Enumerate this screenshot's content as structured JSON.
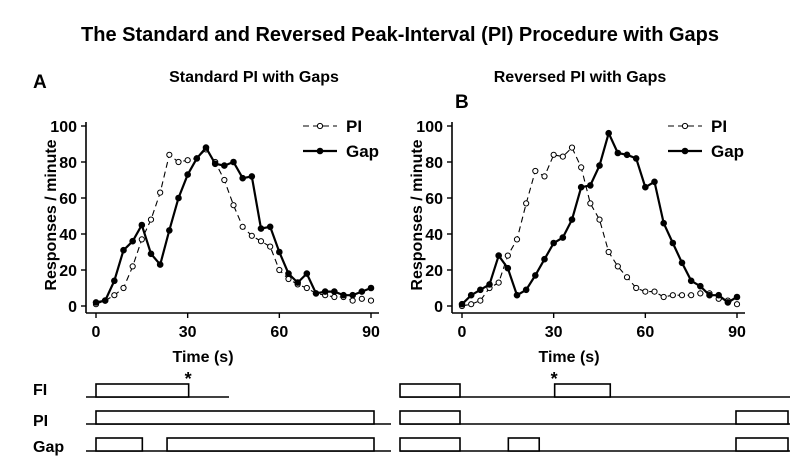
{
  "title": "The Standard and Reversed Peak-Interval (PI) Procedure with Gaps",
  "chart_data": [
    {
      "type": "line",
      "panel_label": "A",
      "title": "Standard PI with Gaps",
      "xlabel": "Time (s)",
      "ylabel": "Responses / minute",
      "xlim": [
        0,
        90
      ],
      "ylim": [
        0,
        100
      ],
      "xticks": [
        "0",
        "30",
        "60",
        "90"
      ],
      "yticks": [
        "0",
        "20",
        "40",
        "60",
        "80",
        "100"
      ],
      "legend": [
        "PI",
        "Gap"
      ],
      "series": [
        {
          "name": "PI",
          "style": "dashed-open-circles",
          "x": [
            0,
            3,
            6,
            9,
            12,
            15,
            18,
            21,
            24,
            27,
            30,
            33,
            36,
            39,
            42,
            45,
            48,
            51,
            54,
            57,
            60,
            63,
            66,
            69,
            72,
            75,
            78,
            81,
            84,
            87,
            90
          ],
          "y": [
            1,
            3,
            6,
            10,
            22,
            37,
            48,
            63,
            84,
            80,
            81,
            82,
            87,
            80,
            70,
            56,
            44,
            39,
            36,
            33,
            20,
            15,
            12,
            10,
            7,
            6,
            5,
            5,
            3,
            4,
            3
          ]
        },
        {
          "name": "Gap",
          "style": "solid-filled-circles",
          "x": [
            0,
            3,
            6,
            9,
            12,
            15,
            18,
            21,
            24,
            27,
            30,
            33,
            36,
            39,
            42,
            45,
            48,
            51,
            54,
            57,
            60,
            63,
            66,
            69,
            72,
            75,
            78,
            81,
            84,
            87,
            90
          ],
          "y": [
            2,
            3,
            14,
            31,
            36,
            45,
            29,
            23,
            42,
            60,
            73,
            82,
            88,
            79,
            78,
            80,
            71,
            72,
            43,
            44,
            30,
            18,
            13,
            18,
            7,
            8,
            8,
            6,
            6,
            8,
            10
          ]
        }
      ],
      "schedule": {
        "rows": [
          "FI",
          "PI",
          "Gap"
        ],
        "FI": [
          [
            0,
            30
          ]
        ],
        "PI": [
          [
            0,
            90
          ]
        ],
        "Gap": [
          [
            0,
            15
          ],
          [
            23,
            90
          ]
        ],
        "reinforcement_mark": "*",
        "reinforcement_time": 30
      }
    },
    {
      "type": "line",
      "panel_label": "B",
      "title": "Reversed PI with Gaps",
      "xlabel": "Time (s)",
      "ylabel": "Responses / minute",
      "xlim": [
        0,
        90
      ],
      "ylim": [
        0,
        100
      ],
      "xticks": [
        "0",
        "30",
        "60",
        "90"
      ],
      "yticks": [
        "0",
        "20",
        "40",
        "60",
        "80",
        "100"
      ],
      "legend": [
        "PI",
        "Gap"
      ],
      "series": [
        {
          "name": "PI",
          "style": "dashed-open-circles",
          "x": [
            0,
            3,
            6,
            9,
            12,
            15,
            18,
            21,
            24,
            27,
            30,
            33,
            36,
            39,
            42,
            45,
            48,
            51,
            54,
            57,
            60,
            63,
            66,
            69,
            72,
            75,
            78,
            81,
            84,
            87,
            90
          ],
          "y": [
            0,
            1,
            3,
            10,
            13,
            28,
            37,
            57,
            75,
            72,
            84,
            83,
            88,
            77,
            57,
            48,
            30,
            22,
            16,
            10,
            8,
            8,
            5,
            6,
            6,
            6,
            7,
            7,
            4,
            3,
            1
          ]
        },
        {
          "name": "Gap",
          "style": "solid-filled-circles",
          "x": [
            0,
            3,
            6,
            9,
            12,
            15,
            18,
            21,
            24,
            27,
            30,
            33,
            36,
            39,
            42,
            45,
            48,
            51,
            54,
            57,
            60,
            63,
            66,
            69,
            72,
            75,
            78,
            81,
            84,
            87,
            90
          ],
          "y": [
            1,
            6,
            9,
            12,
            28,
            21,
            6,
            9,
            17,
            26,
            35,
            38,
            48,
            66,
            67,
            78,
            96,
            85,
            84,
            82,
            66,
            69,
            46,
            35,
            24,
            14,
            11,
            6,
            6,
            2,
            5
          ]
        }
      ],
      "schedule": {
        "rows": [
          "FI",
          "PI",
          "Gap"
        ],
        "FI": [
          [
            0,
            0
          ],
          [
            30,
            48
          ]
        ],
        "PI": [
          [
            0,
            0
          ],
          [
            90,
            90
          ]
        ],
        "Gap": [
          [
            0,
            0
          ],
          [
            15,
            25
          ],
          [
            90,
            90
          ]
        ],
        "reinforcement_mark": "*",
        "reinforcement_time": 30
      }
    }
  ]
}
